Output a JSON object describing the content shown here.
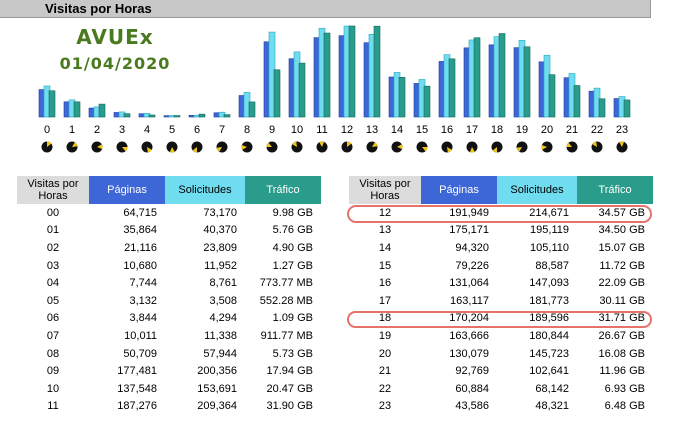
{
  "header": {
    "title": "Visitas por Horas"
  },
  "brand": {
    "name": "AVUEx",
    "date": "01/04/2020"
  },
  "colors": {
    "paginas": "#3d66d6",
    "solicitudes": "#6fdcf0",
    "trafico": "#2a9c8b",
    "highlight": "#e5736a"
  },
  "table": {
    "headers": {
      "hour": "Visitas por Horas",
      "paginas": "Páginas",
      "solicitudes": "Solicitudes",
      "trafico": "Tráfico"
    },
    "rows": [
      {
        "hour": "00",
        "paginas": "64,715",
        "solicitudes": "73,170",
        "trafico": "9.98 GB"
      },
      {
        "hour": "01",
        "paginas": "35,864",
        "solicitudes": "40,370",
        "trafico": "5.76 GB"
      },
      {
        "hour": "02",
        "paginas": "21,116",
        "solicitudes": "23,809",
        "trafico": "4.90 GB"
      },
      {
        "hour": "03",
        "paginas": "10,680",
        "solicitudes": "11,952",
        "trafico": "1.27 GB"
      },
      {
        "hour": "04",
        "paginas": "7,744",
        "solicitudes": "8,761",
        "trafico": "773.77 MB"
      },
      {
        "hour": "05",
        "paginas": "3,132",
        "solicitudes": "3,508",
        "trafico": "552.28 MB"
      },
      {
        "hour": "06",
        "paginas": "3,844",
        "solicitudes": "4,294",
        "trafico": "1.09 GB"
      },
      {
        "hour": "07",
        "paginas": "10,011",
        "solicitudes": "11,338",
        "trafico": "911.77 MB"
      },
      {
        "hour": "08",
        "paginas": "50,709",
        "solicitudes": "57,944",
        "trafico": "5.73 GB"
      },
      {
        "hour": "09",
        "paginas": "177,481",
        "solicitudes": "200,356",
        "trafico": "17.94 GB"
      },
      {
        "hour": "10",
        "paginas": "137,548",
        "solicitudes": "153,691",
        "trafico": "20.47 GB"
      },
      {
        "hour": "11",
        "paginas": "187,276",
        "solicitudes": "209,364",
        "trafico": "31.90 GB"
      },
      {
        "hour": "12",
        "paginas": "191,949",
        "solicitudes": "214,671",
        "trafico": "34.57 GB"
      },
      {
        "hour": "13",
        "paginas": "175,171",
        "solicitudes": "195,119",
        "trafico": "34.50 GB"
      },
      {
        "hour": "14",
        "paginas": "94,320",
        "solicitudes": "105,110",
        "trafico": "15.07 GB"
      },
      {
        "hour": "15",
        "paginas": "79,226",
        "solicitudes": "88,587",
        "trafico": "11.72 GB"
      },
      {
        "hour": "16",
        "paginas": "131,064",
        "solicitudes": "147,093",
        "trafico": "22.09 GB"
      },
      {
        "hour": "17",
        "paginas": "163,117",
        "solicitudes": "181,773",
        "trafico": "30.11 GB"
      },
      {
        "hour": "18",
        "paginas": "170,204",
        "solicitudes": "189,596",
        "trafico": "31.71 GB"
      },
      {
        "hour": "19",
        "paginas": "163,666",
        "solicitudes": "180,844",
        "trafico": "26.67 GB"
      },
      {
        "hour": "20",
        "paginas": "130,079",
        "solicitudes": "145,723",
        "trafico": "16.08 GB"
      },
      {
        "hour": "21",
        "paginas": "92,769",
        "solicitudes": "102,641",
        "trafico": "11.96 GB"
      },
      {
        "hour": "22",
        "paginas": "60,884",
        "solicitudes": "68,142",
        "trafico": "6.93 GB"
      },
      {
        "hour": "23",
        "paginas": "43,586",
        "solicitudes": "48,321",
        "trafico": "6.48 GB"
      }
    ],
    "highlighted_hours": [
      "12",
      "18"
    ]
  },
  "chart_data": {
    "type": "bar",
    "title": "",
    "xlabel": "",
    "ylabel": "",
    "categories": [
      "0",
      "1",
      "2",
      "3",
      "4",
      "5",
      "6",
      "7",
      "8",
      "9",
      "10",
      "11",
      "12",
      "13",
      "14",
      "15",
      "16",
      "17",
      "18",
      "19",
      "20",
      "21",
      "22",
      "23"
    ],
    "series": [
      {
        "name": "Páginas",
        "values": [
          64715,
          35864,
          21116,
          10680,
          7744,
          3132,
          3844,
          10011,
          50709,
          177481,
          137548,
          187276,
          191949,
          175171,
          94320,
          79226,
          131064,
          163117,
          170204,
          163666,
          130079,
          92769,
          60884,
          43586
        ]
      },
      {
        "name": "Solicitudes",
        "values": [
          73170,
          40370,
          23809,
          11952,
          8761,
          3508,
          4294,
          11338,
          57944,
          200356,
          153691,
          209364,
          214671,
          195119,
          105110,
          88587,
          147093,
          181773,
          189596,
          180844,
          145723,
          102641,
          68142,
          48321
        ]
      },
      {
        "name": "Tráfico",
        "unit": "GB",
        "values": [
          9.98,
          5.76,
          4.9,
          1.27,
          0.774,
          0.552,
          1.09,
          0.912,
          5.73,
          17.94,
          20.47,
          31.9,
          34.57,
          34.5,
          15.07,
          11.72,
          22.09,
          30.11,
          31.71,
          26.67,
          16.08,
          11.96,
          6.93,
          6.48
        ]
      }
    ],
    "clock_icons": "one clock glyph per hour below the axis labels",
    "grid": false,
    "legend": "none"
  }
}
